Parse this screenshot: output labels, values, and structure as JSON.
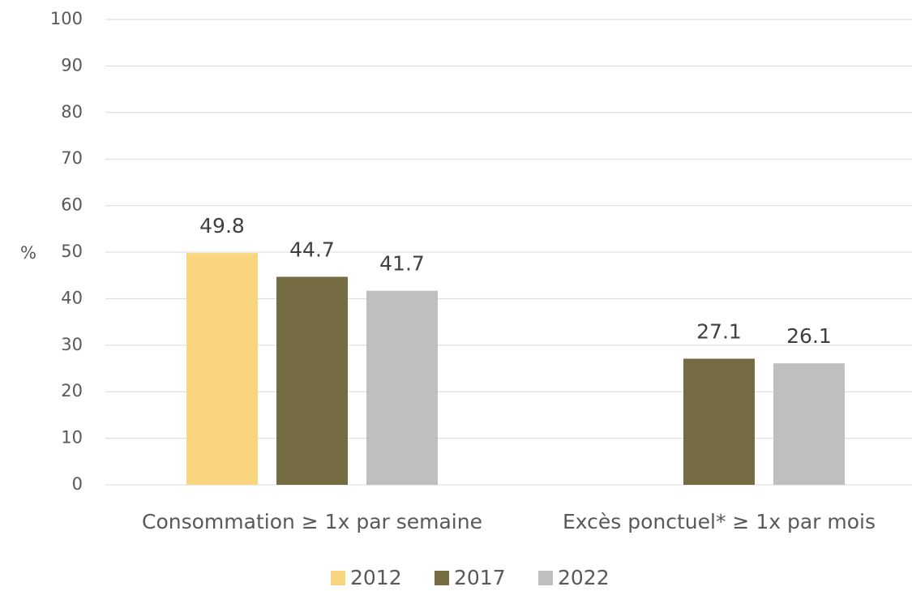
{
  "chart_data": {
    "type": "bar",
    "y_label": "%",
    "categories": [
      "Consommation ≥ 1x par semaine",
      "Excès ponctuel* ≥ 1x par mois"
    ],
    "series": [
      {
        "name": "2012",
        "color": "#f8d57e",
        "values": [
          49.8,
          null
        ]
      },
      {
        "name": "2017",
        "color": "#756c43",
        "values": [
          44.7,
          27.1
        ]
      },
      {
        "name": "2022",
        "color": "#bfbfbf",
        "values": [
          41.7,
          26.1
        ]
      }
    ],
    "ylim": [
      0,
      100
    ],
    "yticks": [
      0,
      10,
      20,
      30,
      40,
      50,
      60,
      70,
      80,
      90,
      100
    ],
    "grid": true,
    "legend": "bottom"
  }
}
